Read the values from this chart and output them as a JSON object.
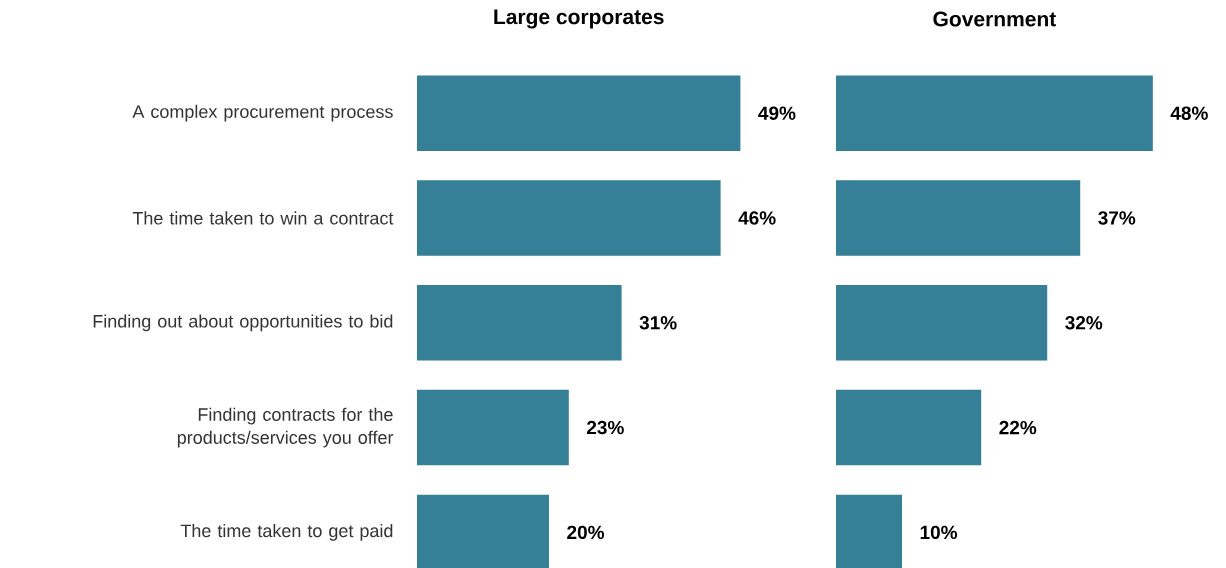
{
  "chart_data": [
    {
      "type": "bar",
      "orientation": "horizontal",
      "title": "Large corporates",
      "categories": [
        "A complex procurement process",
        "The time taken to win a contract",
        "Finding out about opportunities to bid",
        "Finding contracts for the products/services you offer",
        "The time taken to get paid"
      ],
      "values": [
        49,
        46,
        31,
        23,
        20
      ],
      "value_labels": [
        "49%",
        "46%",
        "31%",
        "23%",
        "20%"
      ],
      "color": "#357f97",
      "tick_labels": "y"
    },
    {
      "type": "bar",
      "orientation": "horizontal",
      "title": "Government",
      "categories": [
        null,
        null,
        null,
        null,
        null
      ],
      "values": [
        48,
        37,
        32,
        22,
        10
      ],
      "value_labels": [
        "48%",
        "37%",
        "32%",
        "22%",
        "10%"
      ],
      "color": "#357f97",
      "tick_labels": false
    }
  ]
}
